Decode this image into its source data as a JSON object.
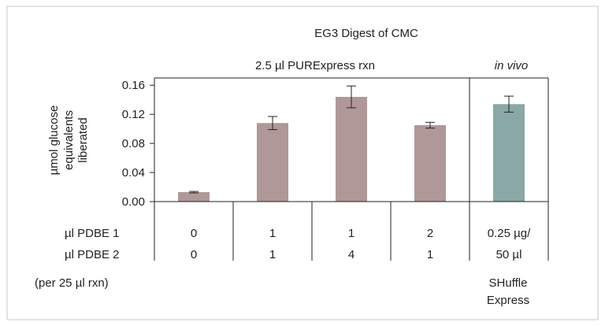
{
  "chart_data": {
    "type": "bar",
    "title": "EG3 Digest of CMC",
    "group_labels": [
      "2.5 µl PURExpress rxn",
      "in vivo"
    ],
    "ylabel_lines": [
      "µmol glucose",
      "equivalents",
      "liberated"
    ],
    "ylim": [
      0,
      0.17
    ],
    "yticks": [
      "0.00",
      "0.04",
      "0.08",
      "0.12",
      "0.16"
    ],
    "ytick_values": [
      0,
      0.04,
      0.08,
      0.12,
      0.16
    ],
    "grid": false,
    "legend": "none",
    "bars": [
      {
        "value": 0.013,
        "error": 0.001,
        "color": "#b09898"
      },
      {
        "value": 0.108,
        "error": 0.009,
        "color": "#b09898"
      },
      {
        "value": 0.144,
        "error": 0.015,
        "color": "#b09898"
      },
      {
        "value": 0.105,
        "error": 0.004,
        "color": "#b09898"
      },
      {
        "value": 0.134,
        "error": 0.011,
        "color": "#8aa8a5"
      }
    ],
    "table": {
      "row_labels": [
        "µl PDBE 1",
        "µl PDBE 2",
        "(per 25 µl rxn)"
      ],
      "pdbe1": [
        "0",
        "1",
        "1",
        "2",
        "0.25 µg/"
      ],
      "pdbe2": [
        "0",
        "1",
        "4",
        "1",
        "50 µl"
      ],
      "footnote_lines": [
        "SHuffle",
        "Express"
      ]
    }
  }
}
